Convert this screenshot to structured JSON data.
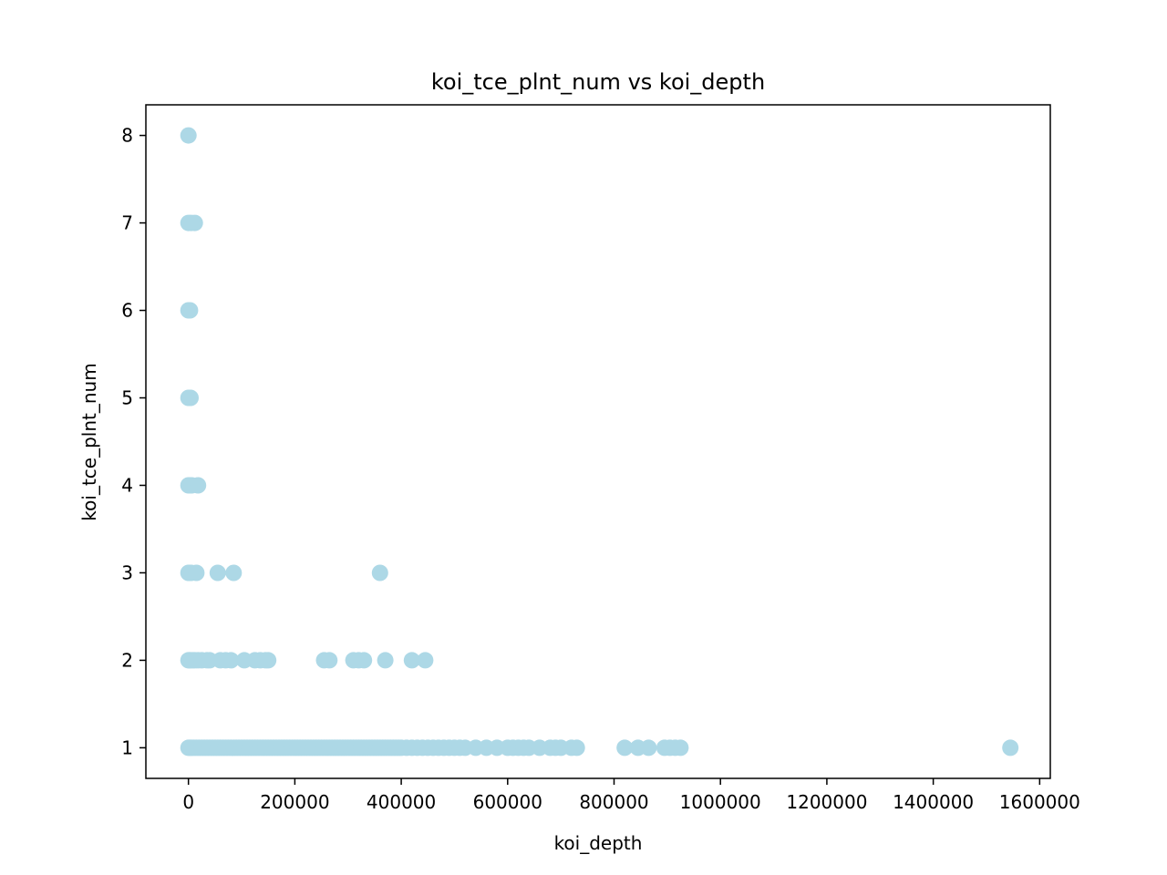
{
  "chart_data": {
    "type": "scatter",
    "title": "koi_tce_plnt_num vs koi_depth",
    "xlabel": "koi_depth",
    "ylabel": "koi_tce_plnt_num",
    "xlim": [
      -80000,
      1620000
    ],
    "ylim": [
      0.65,
      8.35
    ],
    "xticks": [
      0,
      200000,
      400000,
      600000,
      800000,
      1000000,
      1200000,
      1400000,
      1600000
    ],
    "xtick_labels": [
      "0",
      "200000",
      "400000",
      "600000",
      "800000",
      "1000000",
      "1200000",
      "1400000",
      "1600000"
    ],
    "yticks": [
      1,
      2,
      3,
      4,
      5,
      6,
      7,
      8
    ],
    "ytick_labels": [
      "1",
      "2",
      "3",
      "4",
      "5",
      "6",
      "7",
      "8"
    ],
    "grid": false,
    "marker_color": "#add8e6",
    "series": [
      {
        "x": [
          0,
          3000,
          6000,
          10000,
          15000,
          20000,
          25000,
          30000,
          35000,
          40000,
          45000,
          50000,
          55000,
          60000,
          65000,
          70000,
          75000,
          80000,
          85000,
          90000,
          95000,
          100000,
          105000,
          110000,
          115000,
          120000,
          125000,
          130000,
          135000,
          140000,
          145000,
          150000,
          155000,
          160000,
          165000,
          170000,
          175000,
          180000,
          185000,
          190000,
          195000,
          200000,
          205000,
          210000,
          215000,
          220000,
          225000,
          230000,
          235000,
          240000,
          245000,
          250000,
          255000,
          260000,
          265000,
          270000,
          275000,
          280000,
          285000,
          290000,
          295000,
          300000,
          305000,
          310000,
          315000,
          320000,
          325000,
          330000,
          335000,
          340000,
          345000,
          350000,
          355000,
          360000,
          365000,
          370000,
          375000,
          380000,
          385000,
          390000,
          395000,
          400000,
          410000,
          420000,
          430000,
          440000,
          450000,
          460000,
          470000,
          480000,
          490000,
          500000,
          510000,
          520000,
          540000,
          560000,
          580000,
          600000,
          610000,
          620000,
          630000,
          640000,
          660000,
          680000,
          690000,
          700000,
          720000,
          730000,
          820000,
          845000,
          865000,
          895000,
          905000,
          915000,
          925000,
          1545000,
          0,
          2000,
          4000,
          8000,
          12000,
          18000,
          25000,
          35000,
          40000,
          60000,
          70000,
          80000,
          105000,
          125000,
          135000,
          145000,
          150000,
          255000,
          265000,
          310000,
          320000,
          330000,
          370000,
          420000,
          445000,
          0,
          2000,
          5000,
          15000,
          55000,
          85000,
          360000,
          0,
          3000,
          6000,
          18000,
          0,
          2000,
          4000,
          0,
          3000,
          0,
          5000,
          12000,
          0
        ],
        "y": [
          1,
          1,
          1,
          1,
          1,
          1,
          1,
          1,
          1,
          1,
          1,
          1,
          1,
          1,
          1,
          1,
          1,
          1,
          1,
          1,
          1,
          1,
          1,
          1,
          1,
          1,
          1,
          1,
          1,
          1,
          1,
          1,
          1,
          1,
          1,
          1,
          1,
          1,
          1,
          1,
          1,
          1,
          1,
          1,
          1,
          1,
          1,
          1,
          1,
          1,
          1,
          1,
          1,
          1,
          1,
          1,
          1,
          1,
          1,
          1,
          1,
          1,
          1,
          1,
          1,
          1,
          1,
          1,
          1,
          1,
          1,
          1,
          1,
          1,
          1,
          1,
          1,
          1,
          1,
          1,
          1,
          1,
          1,
          1,
          1,
          1,
          1,
          1,
          1,
          1,
          1,
          1,
          1,
          1,
          1,
          1,
          1,
          1,
          1,
          1,
          1,
          1,
          1,
          1,
          1,
          1,
          1,
          1,
          1,
          1,
          1,
          1,
          1,
          1,
          1,
          1,
          2,
          2,
          2,
          2,
          2,
          2,
          2,
          2,
          2,
          2,
          2,
          2,
          2,
          2,
          2,
          2,
          2,
          2,
          2,
          2,
          2,
          2,
          2,
          2,
          2,
          3,
          3,
          3,
          3,
          3,
          3,
          3,
          4,
          4,
          4,
          4,
          5,
          5,
          5,
          6,
          6,
          7,
          7,
          7,
          8
        ]
      }
    ]
  }
}
